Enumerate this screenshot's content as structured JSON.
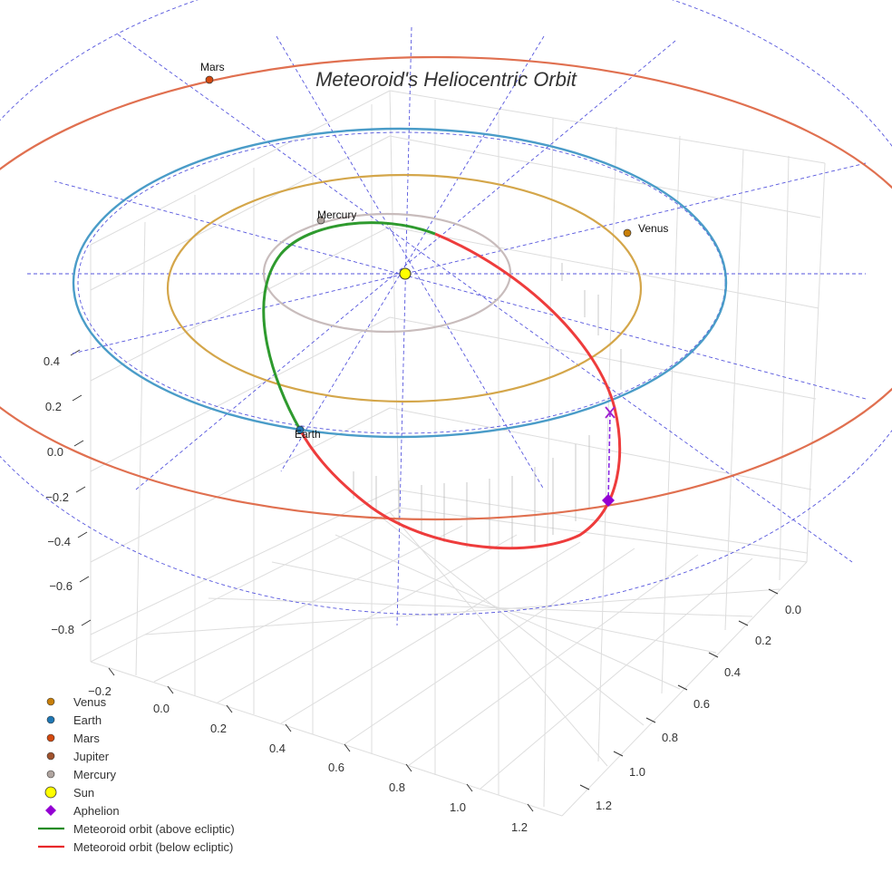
{
  "chart_data": {
    "type": "line3d",
    "title": "Meteoroid's Heliocentric Orbit",
    "xlabel": "",
    "ylabel": "",
    "zlabel": "",
    "x_ticks": [
      "−0.2",
      "0.0",
      "0.2",
      "0.4",
      "0.6",
      "0.8",
      "1.0",
      "1.2"
    ],
    "y_ticks": [
      "0.0",
      "0.2",
      "0.4",
      "0.6",
      "0.8",
      "1.0",
      "1.2"
    ],
    "z_ticks": [
      "0.4",
      "0.2",
      "0.0",
      "−0.2",
      "−0.4",
      "−0.6",
      "−0.8"
    ],
    "planet_labels": {
      "mars": "Mars",
      "mercury": "Mercury",
      "venus": "Venus",
      "earth": "Earth"
    },
    "legend": [
      {
        "label": "Venus",
        "color": "#c87f0a",
        "marker": "circle"
      },
      {
        "label": "Earth",
        "color": "#1f77b4",
        "marker": "circle"
      },
      {
        "label": "Mars",
        "color": "#d4490f",
        "marker": "circle"
      },
      {
        "label": "Jupiter",
        "color": "#a0522d",
        "marker": "circle"
      },
      {
        "label": "Mercury",
        "color": "#b0a5a0",
        "marker": "circle"
      },
      {
        "label": "Sun",
        "color": "#ffff00",
        "marker": "circle"
      },
      {
        "label": "Aphelion",
        "color": "#9400d3",
        "marker": "diamond"
      },
      {
        "label": "Meteoroid orbit (above ecliptic)",
        "color": "#228b22",
        "marker": "line"
      },
      {
        "label": "Meteoroid orbit (below ecliptic)",
        "color": "#e8282a",
        "marker": "line"
      }
    ],
    "legend_position": "bottom-left",
    "orbit_colors": {
      "mars": "#e07050",
      "earth": "#4a9cc8",
      "venus": "#d4a64a",
      "mercury": "#c8bcbc"
    }
  }
}
